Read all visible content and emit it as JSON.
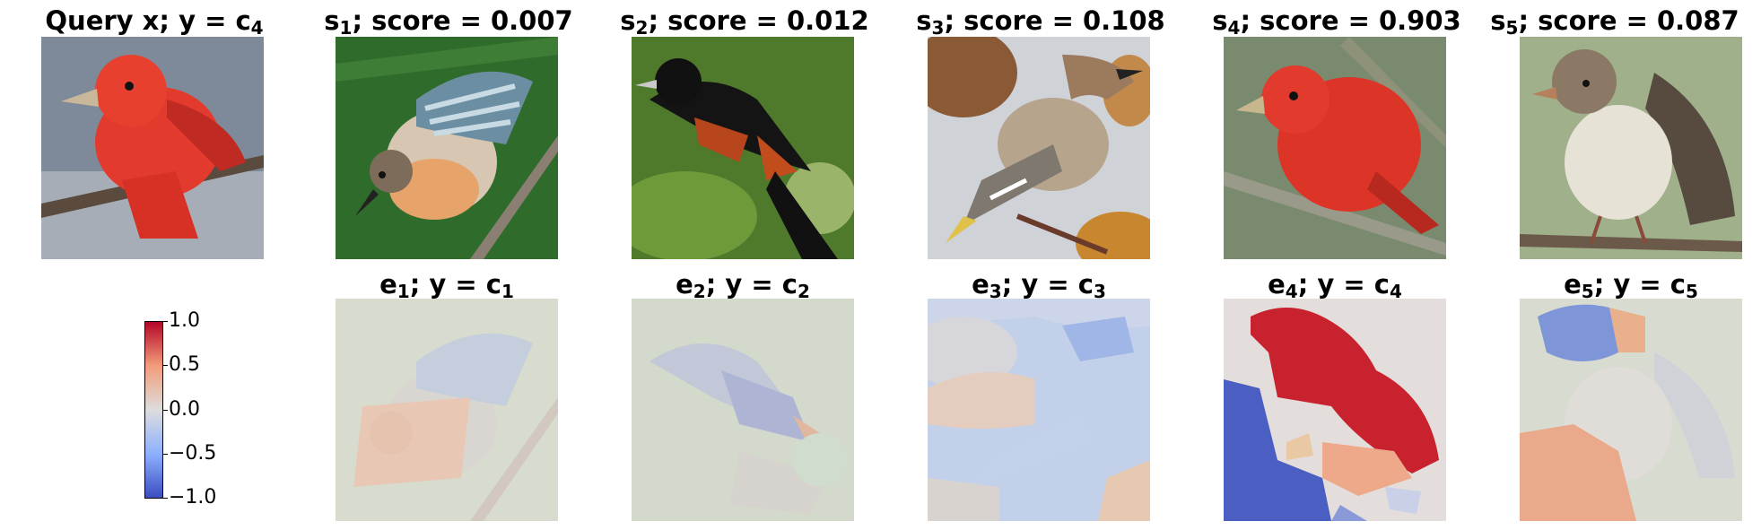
{
  "chart_data": {
    "type": "image-grid",
    "top_row": [
      {
        "var": "Query x",
        "sep": "; y = ",
        "cls": "c",
        "cls_sub": "4",
        "subject": "red-bird"
      },
      {
        "var": "s",
        "var_sub": "1",
        "text": "; score = 0.007",
        "score": 0.007,
        "subject": "striped-warbler"
      },
      {
        "var": "s",
        "var_sub": "2",
        "text": "; score = 0.012",
        "score": 0.012,
        "subject": "orange-black-oriole"
      },
      {
        "var": "s",
        "var_sub": "3",
        "text": "; score = 0.108",
        "score": 0.108,
        "subject": "waxwing"
      },
      {
        "var": "s",
        "var_sub": "4",
        "text": "; score = 0.903",
        "score": 0.903,
        "subject": "red-bird"
      },
      {
        "var": "s",
        "var_sub": "5",
        "text": "; score = 0.087",
        "score": 0.087,
        "subject": "sparrow"
      }
    ],
    "bottom_row": [
      {
        "var": "e",
        "var_sub": "1",
        "sep": "; y = ",
        "cls": "c",
        "cls_sub": "1",
        "max_attribution": 0.25
      },
      {
        "var": "e",
        "var_sub": "2",
        "sep": "; y = ",
        "cls": "c",
        "cls_sub": "2",
        "max_attribution": 0.25
      },
      {
        "var": "e",
        "var_sub": "3",
        "sep": "; y = ",
        "cls": "c",
        "cls_sub": "3",
        "max_attribution": 0.4
      },
      {
        "var": "e",
        "var_sub": "4",
        "sep": "; y = ",
        "cls": "c",
        "cls_sub": "4",
        "max_attribution": 1.0
      },
      {
        "var": "e",
        "var_sub": "5",
        "sep": "; y = ",
        "cls": "c",
        "cls_sub": "5",
        "max_attribution": 0.5
      }
    ],
    "colorbar": {
      "colormap": "coolwarm",
      "min": -1.0,
      "max": 1.0,
      "ticks": [
        "1.0",
        "0.5",
        "0.0",
        "−0.5",
        "−1.0"
      ]
    }
  }
}
